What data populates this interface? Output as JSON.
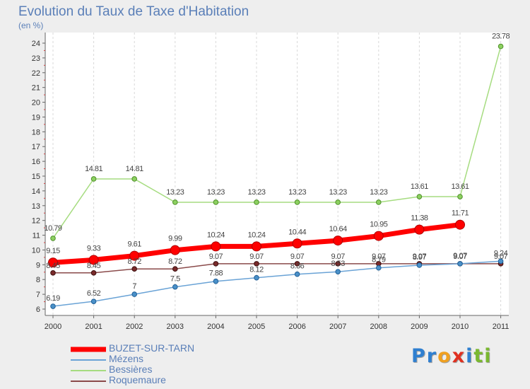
{
  "title": "Evolution du Taux de Taxe d'Habitation",
  "subtitle": "(en %)",
  "brand": {
    "letters": [
      "P",
      "r",
      "o",
      "x",
      "i",
      "t",
      "i"
    ],
    "colors": [
      "#2f7fd0",
      "#2f7fd0",
      "#f0a020",
      "#e03020",
      "#2f7fd0",
      "#7ab830",
      "#7ab830"
    ]
  },
  "chart_data": {
    "type": "line",
    "title": "Evolution du Taux de Taxe d'Habitation",
    "ylabel": "(en %)",
    "xlabel": "",
    "x": [
      "2000",
      "2001",
      "2002",
      "2003",
      "2004",
      "2005",
      "2006",
      "2007",
      "2008",
      "2009",
      "2010",
      "2011"
    ],
    "ylim": [
      6,
      24
    ],
    "yticks": [
      6,
      7,
      8,
      9,
      10,
      11,
      12,
      13,
      14,
      15,
      16,
      17,
      18,
      19,
      20,
      21,
      22,
      23,
      24
    ],
    "grid": "vertical dashed",
    "legend_position": "bottom-left",
    "series": [
      {
        "name": "BUZET-SUR-TARN",
        "color": "#ff0000",
        "values": [
          9.15,
          9.33,
          9.61,
          9.99,
          10.24,
          10.24,
          10.44,
          10.64,
          10.95,
          11.38,
          11.71,
          null
        ],
        "labels": [
          "9.15",
          "9.33",
          "9.61",
          "9.99",
          "10.24",
          "10.24",
          "10.44",
          "10.64",
          "10.95",
          "11.38",
          "11.71",
          ""
        ]
      },
      {
        "name": "Mézens",
        "color": "#4a90c8",
        "values": [
          6.19,
          6.52,
          7,
          7.5,
          7.88,
          8.12,
          8.36,
          8.53,
          8.79,
          8.97,
          9.07,
          9.24
        ],
        "labels": [
          "6.19",
          "6.52",
          "7",
          "7.5",
          "7.88",
          "8.12",
          "8.36",
          "8.53",
          "8.79",
          "8.97",
          "9.07",
          "9.24"
        ]
      },
      {
        "name": "Bessières",
        "color": "#8cd060",
        "values": [
          10.79,
          14.81,
          14.81,
          13.23,
          13.23,
          13.23,
          13.23,
          13.23,
          13.23,
          13.61,
          13.61,
          23.78
        ],
        "labels": [
          "10.79",
          "14.81",
          "14.81",
          "13.23",
          "13.23",
          "13.23",
          "13.23",
          "13.23",
          "13.23",
          "13.61",
          "13.61",
          "23.78"
        ]
      },
      {
        "name": "Roquemaure",
        "color": "#7a2a2a",
        "values": [
          8.45,
          8.45,
          8.72,
          8.72,
          9.07,
          9.07,
          9.07,
          9.07,
          9.07,
          9.07,
          9.07,
          9.07
        ],
        "labels": [
          "8.45",
          "8.45",
          "8.72",
          "8.72",
          "9.07",
          "9.07",
          "9.07",
          "9.07",
          "9.07",
          "9.07",
          "9.07",
          "9.07"
        ]
      }
    ]
  }
}
